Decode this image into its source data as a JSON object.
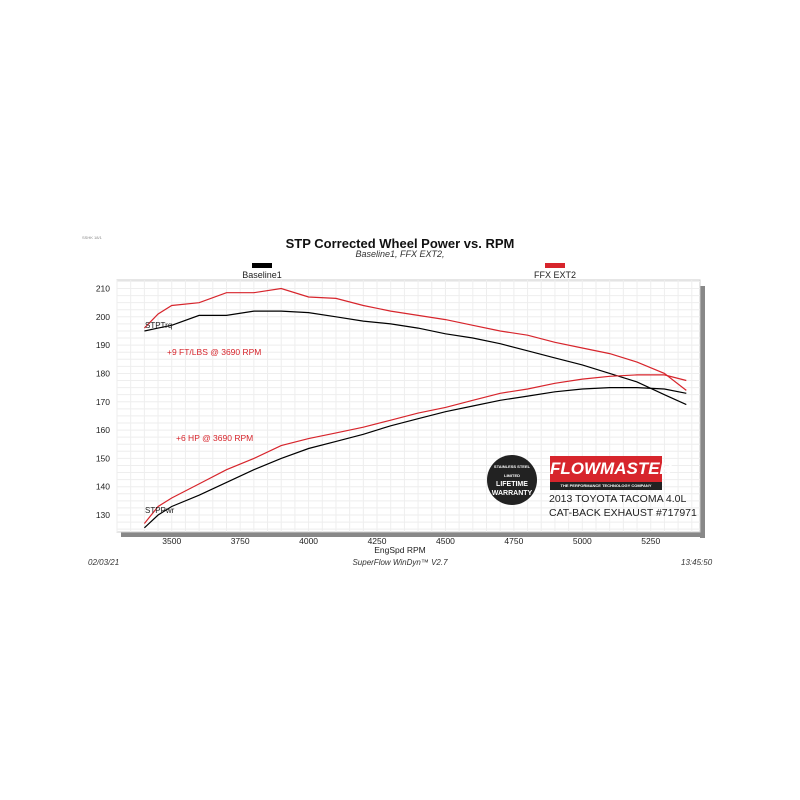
{
  "chart_data": {
    "type": "line",
    "code": "SSHK 18/1",
    "title": "STP Corrected Wheel Power vs. RPM",
    "subtitle": "Baseline1, FFX EXT2,",
    "xlabel": "EngSpd  RPM",
    "xlim": [
      3300,
      5430
    ],
    "ylim": [
      124,
      213
    ],
    "xticks": [
      3500,
      3750,
      4000,
      4250,
      4500,
      4750,
      5000,
      5250
    ],
    "yticks": [
      130,
      140,
      150,
      160,
      170,
      180,
      190,
      200,
      210
    ],
    "grid": true,
    "legend": [
      {
        "name": "Baseline1",
        "color": "#000000"
      },
      {
        "name": "FFX EXT2",
        "color": "#d7252c"
      }
    ],
    "x": [
      3400,
      3450,
      3500,
      3600,
      3700,
      3800,
      3900,
      4000,
      4100,
      4200,
      4300,
      4400,
      4500,
      4600,
      4700,
      4800,
      4900,
      5000,
      5100,
      5200,
      5300,
      5380
    ],
    "series": [
      {
        "name": "Baseline1",
        "label": "STPTrq",
        "color": "#000000",
        "values": [
          195,
          196,
          197,
          200.5,
          200.5,
          202,
          202,
          201.5,
          200,
          198.5,
          197.5,
          196,
          194,
          192.5,
          190.5,
          188,
          185.5,
          183,
          180,
          177,
          172.5,
          169
        ]
      },
      {
        "name": "FFX EXT2",
        "color": "#d7252c",
        "values": [
          196,
          201,
          204,
          205,
          208.5,
          208.5,
          210,
          207,
          206.5,
          204,
          202,
          200.5,
          199,
          197,
          195,
          193.5,
          191,
          189,
          187,
          184,
          180,
          174
        ]
      },
      {
        "name": "Baseline1",
        "label": "STPPwr",
        "color": "#000000",
        "values": [
          125.5,
          130,
          133,
          137,
          141.5,
          146,
          150,
          153.5,
          156,
          158.5,
          161.5,
          164,
          166.5,
          168.5,
          170.5,
          172,
          173.5,
          174.5,
          175,
          175,
          174.5,
          173
        ]
      },
      {
        "name": "FFX EXT2",
        "color": "#d7252c",
        "values": [
          127,
          133,
          136,
          141,
          146,
          150,
          154.5,
          157,
          159,
          161,
          163.5,
          166,
          168,
          170.5,
          173,
          174.5,
          176.5,
          178,
          179,
          179.5,
          179.5,
          177.5
        ]
      }
    ],
    "annotations": [
      "+9 FT/LBS @ 3690 RPM",
      "+6 HP @ 3690 RPM"
    ],
    "curve_labels": [
      "STPTrq",
      "STPPwr"
    ]
  },
  "brand": {
    "name": "FLOWMASTER",
    "tagline": "THE PERFORMANCE TECHNOLOGY COMPANY",
    "warranty": [
      "STAINLESS STEEL",
      "LIMITED",
      "LIFETIME",
      "WARRANTY"
    ],
    "car_line1": "2013 TOYOTA TACOMA 4.0L",
    "car_line2": "CAT-BACK EXHAUST #717971"
  },
  "footer": {
    "date": "02/03/21",
    "software": "SuperFlow WinDyn™ V2.7",
    "time": "13:45:50"
  }
}
